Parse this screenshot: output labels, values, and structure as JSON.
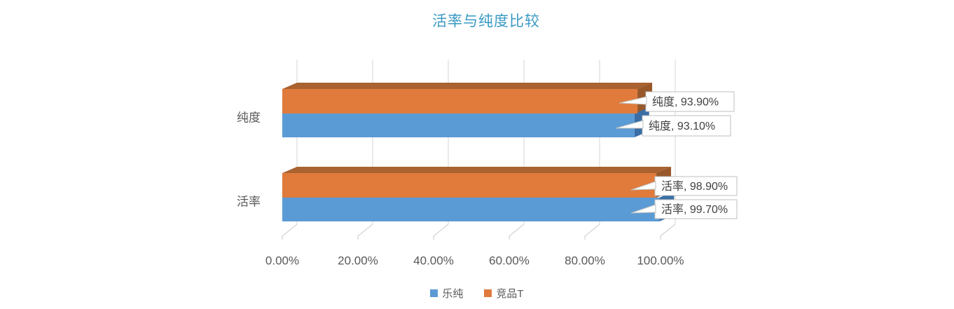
{
  "chart_data": {
    "type": "bar",
    "orientation": "horizontal",
    "style": "3d",
    "title": "活率与纯度比较",
    "title_color": "#3999C4",
    "categories": [
      "纯度",
      "活率"
    ],
    "series": [
      {
        "name": "乐纯",
        "color": "#5B9BD5",
        "side_color": "#3A6EA5",
        "values": [
          93.1,
          99.7
        ]
      },
      {
        "name": "竞品T",
        "color": "#E07B3C",
        "top_color": "#A96230",
        "side_color": "#98582A",
        "values": [
          93.9,
          98.9
        ]
      }
    ],
    "data_labels": [
      {
        "category": "纯度",
        "series": "竞品T",
        "value": 93.9,
        "text": "纯度, 93.90%"
      },
      {
        "category": "纯度",
        "series": "乐纯",
        "value": 93.1,
        "text": "纯度, 93.10%"
      },
      {
        "category": "活率",
        "series": "竞品T",
        "value": 98.9,
        "text": "活率, 98.90%"
      },
      {
        "category": "活率",
        "series": "乐纯",
        "value": 99.7,
        "text": "活率, 99.70%"
      }
    ],
    "x_axis": {
      "min": 0,
      "max": 100,
      "ticks": [
        "0.00%",
        "20.00%",
        "40.00%",
        "60.00%",
        "80.00%",
        "100.00%"
      ]
    },
    "xlabel": "",
    "ylabel": "",
    "grid": true,
    "legend_position": "bottom",
    "legend_entries": [
      "乐纯",
      "竞品T"
    ],
    "colors": {
      "axis_text": "#595959",
      "gridline": "#D6D6D6",
      "floor_tick": "#C9C9C9",
      "callout_fill": "#FFFFFF",
      "callout_border": "#BFBFBF",
      "callout_text": "#404040",
      "background": "#FFFFFF"
    }
  }
}
